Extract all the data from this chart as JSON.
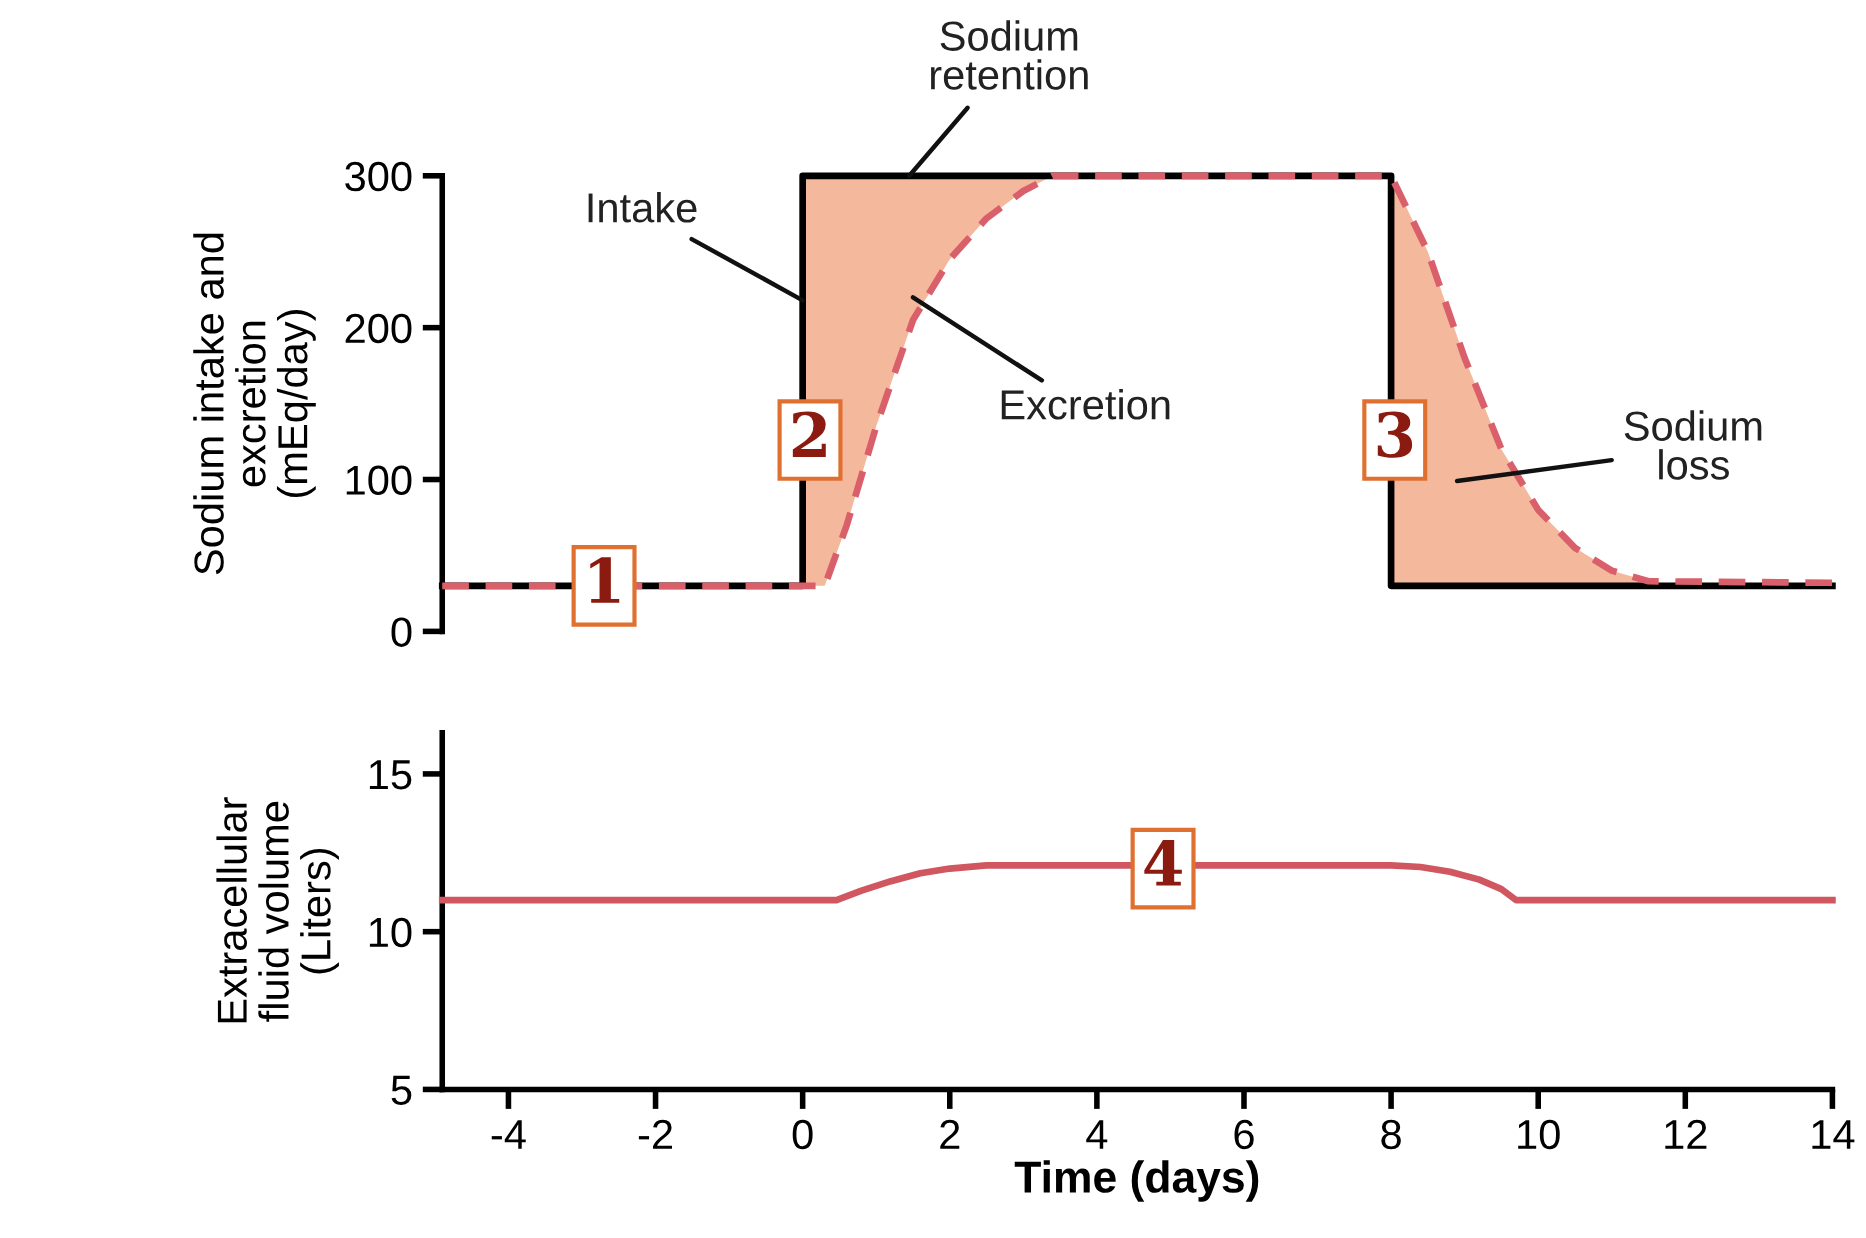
{
  "chart_data": [
    {
      "type": "line",
      "ylabel": "Sodium intake and\nexcretion\n(mEq/day)",
      "xlim": [
        -4.9,
        14
      ],
      "ylim": [
        0,
        300
      ],
      "yticks": [
        0,
        100,
        200,
        300
      ],
      "tick_labels": "y",
      "grid": false,
      "legend": false,
      "marker": "none",
      "series": [
        {
          "color": "#000000",
          "line_style": "solid",
          "x": [
            -4.9,
            0,
            0,
            8,
            8,
            14
          ],
          "values": [
            30,
            30,
            300,
            300,
            30,
            30
          ]
        },
        {
          "color": "#d9606a",
          "line_style": "dashed",
          "x": [
            -4.9,
            0,
            0.3,
            0.6,
            1,
            1.5,
            2,
            2.5,
            3,
            3.4,
            4,
            8,
            8,
            8.5,
            9,
            9.5,
            10,
            10.5,
            11,
            11.5,
            14
          ],
          "values": [
            30,
            30,
            30,
            70,
            135,
            205,
            245,
            272,
            290,
            300,
            300,
            300,
            300,
            250,
            180,
            120,
            80,
            55,
            40,
            33,
            32
          ],
          "lower": [
            null,
            30,
            30,
            70,
            135,
            205,
            245,
            272,
            290,
            300,
            null,
            null,
            30,
            30,
            30,
            30,
            30,
            30,
            30,
            30,
            null
          ],
          "upper": [
            null,
            300,
            300,
            300,
            300,
            300,
            300,
            300,
            300,
            300,
            null,
            null,
            300,
            250,
            180,
            120,
            80,
            55,
            40,
            33,
            null
          ]
        }
      ],
      "annotations": [
        {
          "text": "Sodium\nretention",
          "x": 1.45,
          "y": 300
        },
        {
          "text": "Intake",
          "x": 0,
          "y": 218
        },
        {
          "text": "Excretion",
          "x": 1.5,
          "y": 220
        },
        "Sodium\nloss",
        {
          "text": "1",
          "x": -2.7,
          "y": 30
        },
        {
          "text": "2",
          "x": 0.1,
          "y": 126
        },
        {
          "text": "3",
          "x": 8.05,
          "y": 126
        }
      ]
    },
    {
      "type": "line",
      "xlabel": "Time (days)",
      "ylabel": "Extracellular\nfluid volume\n(Liters)",
      "xlim": [
        -4.9,
        14
      ],
      "ylim": [
        5,
        16.3
      ],
      "xticks": [
        -4,
        -2,
        0,
        2,
        4,
        6,
        8,
        10,
        12,
        14
      ],
      "yticks": [
        5,
        10,
        15
      ],
      "grid": false,
      "legend": false,
      "marker": "none",
      "series": [
        {
          "color": "#d0575f",
          "line_style": "solid",
          "x": [
            -4.9,
            0.46,
            0.8,
            1.2,
            1.6,
            2.0,
            2.5,
            8,
            8.4,
            8.8,
            9.2,
            9.5,
            9.7,
            14
          ],
          "values": [
            11,
            11,
            11.3,
            11.6,
            11.85,
            12.0,
            12.1,
            12.1,
            12.05,
            11.9,
            11.65,
            11.35,
            11,
            11
          ]
        }
      ],
      "annotations": [
        {
          "text": "4",
          "x": 4.9,
          "y": 12.0
        }
      ]
    }
  ]
}
